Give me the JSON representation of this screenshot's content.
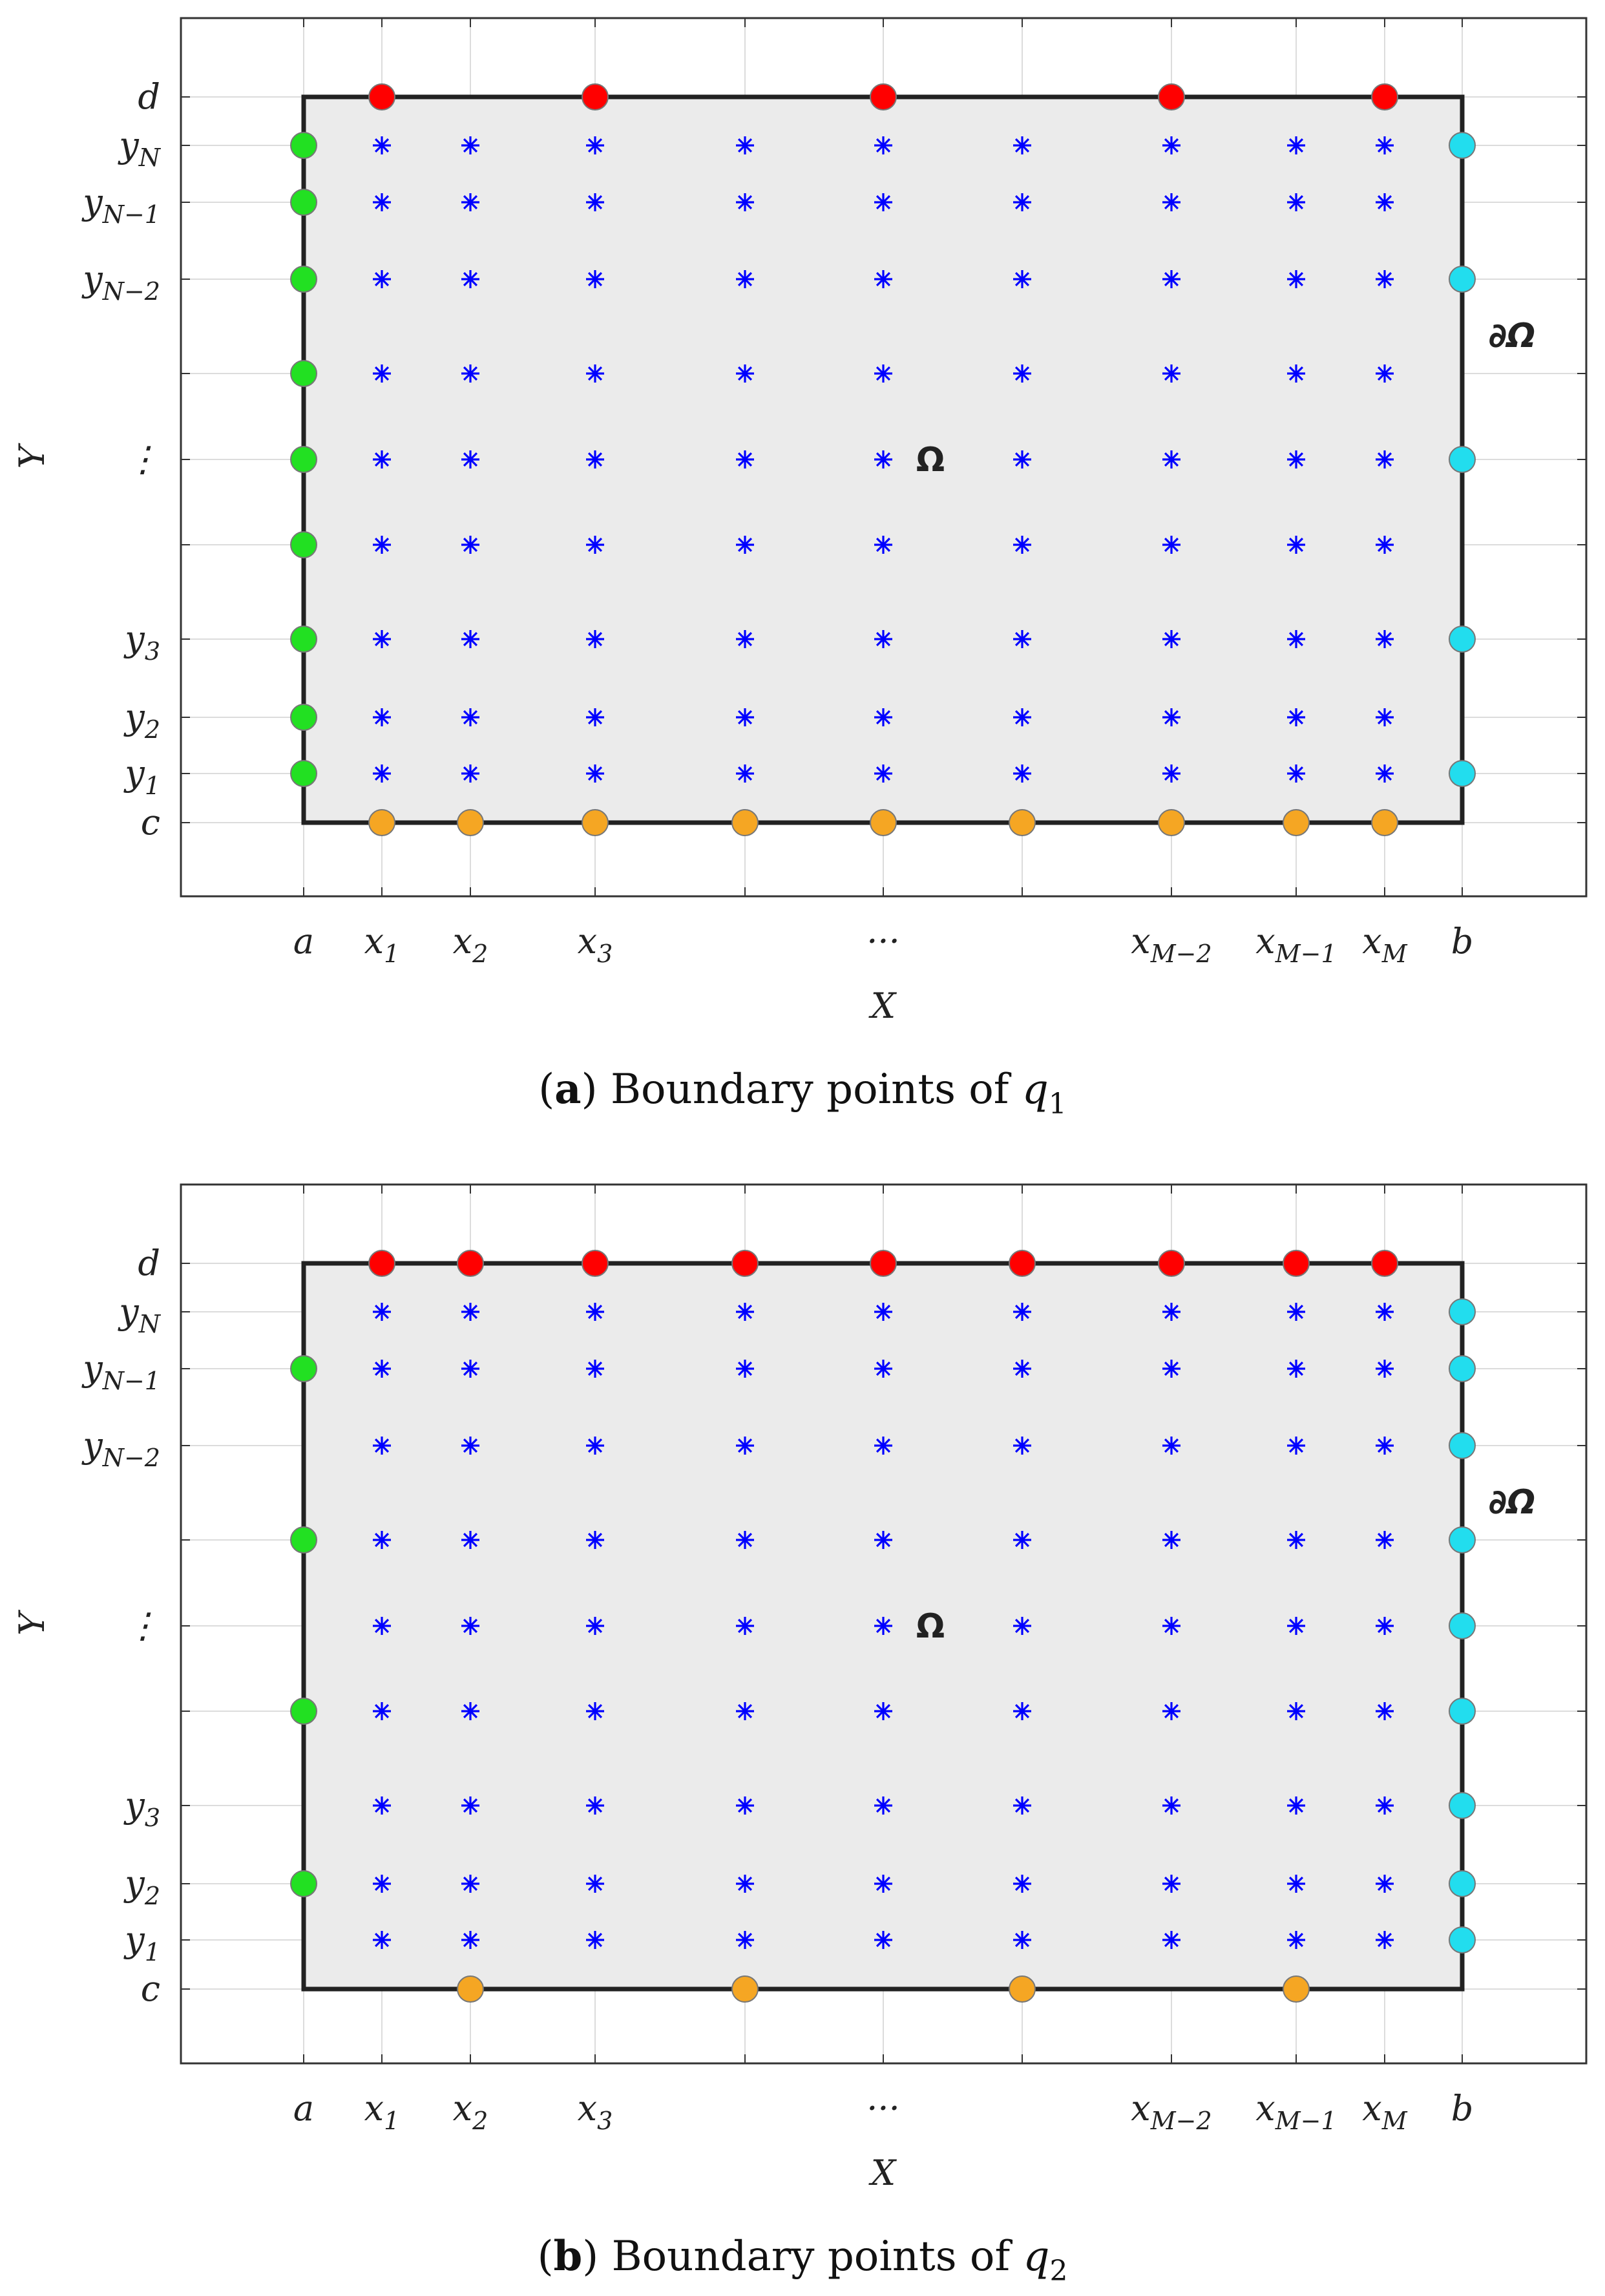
{
  "figure": {
    "xlabel": "X",
    "ylabel": "Y",
    "domain_label": "Ω",
    "boundary_label": "∂Ω",
    "colors": {
      "top": "#ff0000",
      "bottom": "#f5a623",
      "left": "#22e022",
      "right": "#22ddee",
      "interior": "#0000ff",
      "domain_fill": "#ebebeb",
      "frame": "#222222"
    },
    "x_ticks": [
      {
        "base": "a",
        "sub": ""
      },
      {
        "base": "x",
        "sub": "1"
      },
      {
        "base": "x",
        "sub": "2"
      },
      {
        "base": "x",
        "sub": "3"
      },
      {
        "base": "",
        "sub": ""
      },
      {
        "base": "···",
        "sub": ""
      },
      {
        "base": "",
        "sub": ""
      },
      {
        "base": "x",
        "sub": "M−2"
      },
      {
        "base": "x",
        "sub": "M−1"
      },
      {
        "base": "x",
        "sub": "M"
      },
      {
        "base": "b",
        "sub": ""
      }
    ],
    "y_ticks": [
      {
        "base": "d",
        "sub": ""
      },
      {
        "base": "y",
        "sub": "N"
      },
      {
        "base": "y",
        "sub": "N−1"
      },
      {
        "base": "y",
        "sub": "N−2"
      },
      {
        "base": "",
        "sub": ""
      },
      {
        "base": "⋮",
        "sub": ""
      },
      {
        "base": "",
        "sub": ""
      },
      {
        "base": "y",
        "sub": "3"
      },
      {
        "base": "y",
        "sub": "2"
      },
      {
        "base": "y",
        "sub": "1"
      },
      {
        "base": "c",
        "sub": ""
      }
    ]
  },
  "panels": [
    {
      "id": "a",
      "caption_letter": "a",
      "caption_text": "Boundary points of ",
      "caption_var": "q",
      "caption_sub": "1",
      "top_points": [
        1,
        3,
        5,
        7,
        9
      ],
      "bottom_points": [
        1,
        2,
        3,
        4,
        5,
        6,
        7,
        8,
        9
      ],
      "left_points": [
        1,
        2,
        3,
        4,
        5,
        6,
        7,
        8,
        9
      ],
      "right_points": [
        1,
        3,
        5,
        7,
        9
      ]
    },
    {
      "id": "b",
      "caption_letter": "b",
      "caption_text": "Boundary points of ",
      "caption_var": "q",
      "caption_sub": "2",
      "top_points": [
        1,
        2,
        3,
        4,
        5,
        6,
        7,
        8,
        9
      ],
      "bottom_points": [
        2,
        4,
        6,
        8
      ],
      "left_points": [
        2,
        4,
        6,
        8
      ],
      "right_points": [
        1,
        2,
        3,
        4,
        5,
        6,
        7,
        8,
        9
      ]
    }
  ]
}
